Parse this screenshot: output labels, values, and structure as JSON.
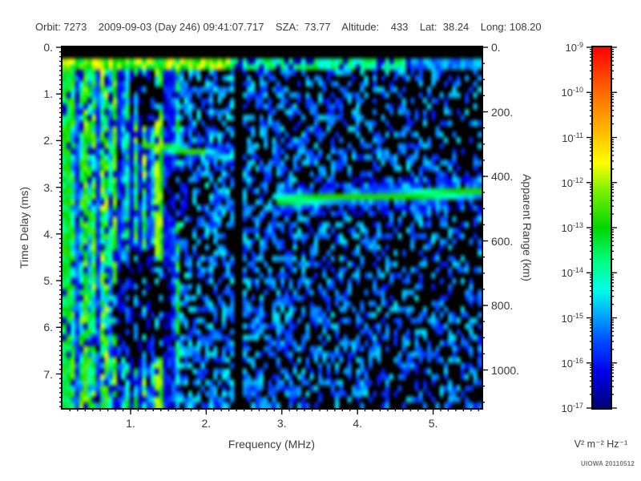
{
  "header": {
    "text": "Orbit: 7273    2009-09-03 (Day 246) 09:41:07.717    SZA:  73.77    Altitude:    433    Lat:  38.24    Long: 108.20"
  },
  "watermark": "UIOWA 20110512",
  "chart_data": {
    "type": "heatmap",
    "title": "Orbit: 7273  2009-09-03 (Day 246) 09:41:07.717  SZA: 73.77  Altitude: 433  Lat: 38.24  Long: 108.20",
    "xlabel": "Frequency (MHz)",
    "ylabel": "Time Delay (ms)",
    "y2label": "Apparent Range (km)",
    "x_range": [
      0.1,
      5.64
    ],
    "x_ticks": [
      1,
      2,
      3,
      4,
      5
    ],
    "x_tick_labels": [
      "1.",
      "2.",
      "3.",
      "4.",
      "5."
    ],
    "x_minor_step": 0.1,
    "y_range": [
      0,
      7.73
    ],
    "y_ticks": [
      0,
      1,
      2,
      3,
      4,
      5,
      6,
      7
    ],
    "y_tick_labels": [
      "0.",
      "1.",
      "2.",
      "3.",
      "4.",
      "5.",
      "6.",
      "7."
    ],
    "y_minor_step": 0.1,
    "y2_range": [
      0,
      1118
    ],
    "y2_ticks": [
      0,
      200,
      400,
      600,
      800,
      1000
    ],
    "y2_tick_labels": [
      "0.",
      "200.",
      "400.",
      "600.",
      "800.",
      "1000."
    ],
    "y2_minor_step": 50,
    "colorbar": {
      "scale": "log",
      "unit": "V² m⁻² Hz⁻¹",
      "max_exp": -9,
      "min_exp": -17,
      "tick_exps": [
        -9,
        -10,
        -11,
        -12,
        -13,
        -14,
        -15,
        -16,
        -17
      ]
    },
    "notable_features": [
      "bright cyan-green horizontal band at ~0.3 ms across all frequencies (local plasma / transmitter band)",
      "dense vertical noise striations below ~1.65 MHz, brightest green-yellow stripes near 0.15-1.5 MHz",
      "black quiet vertical gap near 2.4 MHz",
      "horizontal ionospheric echo trace at ~3.1-3.3 ms from ~2.9 MHz to right edge",
      "short bright echo segment at ~2.1-2.3 ms between ~1.2 and 2.3 MHz",
      "oblique faint streak near 2.5 MHz descending from 2.6 to 3.0 ms",
      "sparse blue speckle background thinning toward high frequency"
    ],
    "render": {
      "grid": {
        "cols": 100,
        "rows": 64
      },
      "regions": {
        "top_black_t": 0.24,
        "surface_band": {
          "t0": 0.24,
          "t1": 0.47,
          "strong_f_max": 2.3
        },
        "noise_f_max": 1.65,
        "solid_left_f_max": 0.22,
        "quiet_gap": [
          2.38,
          2.5
        ],
        "right_density": [
          0.55,
          0.06
        ],
        "holes": [
          {
            "f": 1.15,
            "t": 5.6,
            "rf": 0.4,
            "rt": 1.3
          },
          {
            "f": 1.2,
            "t": 1.1,
            "rf": 0.22,
            "rt": 0.65
          },
          {
            "f": 1.62,
            "t": 3.2,
            "rf": 0.18,
            "rt": 0.55
          }
        ]
      },
      "traces": [
        {
          "name": "ionospheric-echo",
          "f0": 2.92,
          "f1": 5.64,
          "t0": 3.28,
          "t1": 3.1,
          "w": 0.1,
          "amp": 0.52,
          "halo": 0.24
        },
        {
          "name": "second-hop-echo",
          "f0": 1.15,
          "f1": 2.36,
          "t0": 2.08,
          "t1": 2.35,
          "w": 0.09,
          "amp": 0.54,
          "halo": 0.14,
          "fade_f": 2.0,
          "fade_amp": 0.62
        },
        {
          "name": "oblique-streak",
          "f0": 2.48,
          "f1": 2.62,
          "t0": 2.6,
          "t1": 3.05,
          "w": 0.1,
          "amp": 0.36,
          "halo": 0
        }
      ],
      "colormap": [
        [
          0.0,
          0,
          0,
          120
        ],
        [
          0.1,
          0,
          0,
          230
        ],
        [
          0.18,
          0,
          70,
          255
        ],
        [
          0.26,
          0,
          170,
          255
        ],
        [
          0.33,
          0,
          255,
          230
        ],
        [
          0.4,
          0,
          255,
          140
        ],
        [
          0.5,
          0,
          215,
          0
        ],
        [
          0.6,
          120,
          240,
          0
        ],
        [
          0.68,
          255,
          255,
          0
        ],
        [
          0.76,
          255,
          190,
          0
        ],
        [
          0.87,
          255,
          110,
          0
        ],
        [
          1.0,
          255,
          0,
          0
        ]
      ]
    }
  }
}
